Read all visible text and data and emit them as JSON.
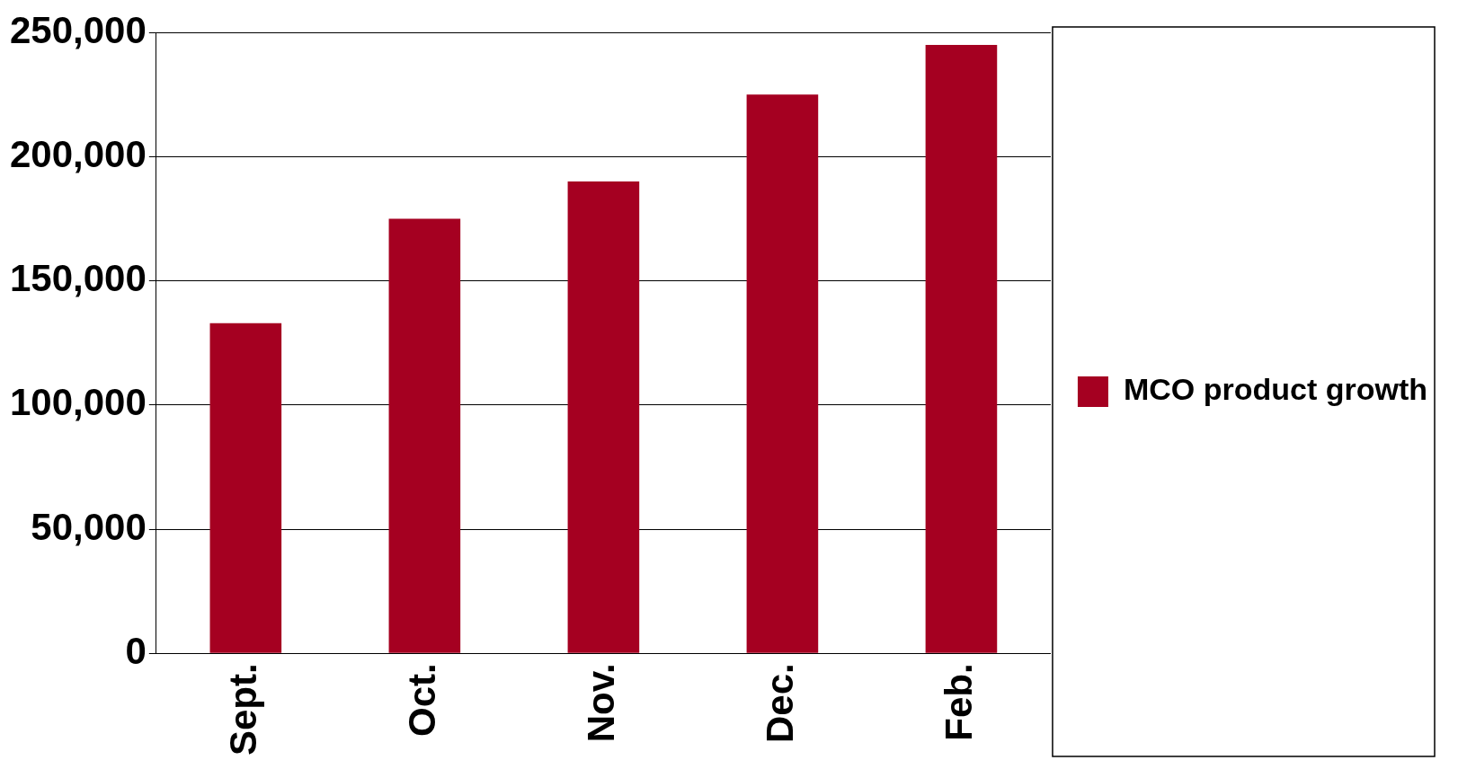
{
  "chart_data": {
    "type": "bar",
    "categories": [
      "Sept.",
      "Oct.",
      "Nov.",
      "Dec.",
      "Feb."
    ],
    "series": [
      {
        "name": "MCO product growth",
        "color": "#a50021",
        "values": [
          133000,
          175000,
          190000,
          225000,
          245000
        ]
      }
    ],
    "ylim": [
      0,
      250000
    ],
    "yticks": [
      {
        "value": 0,
        "label": "0"
      },
      {
        "value": 50000,
        "label": "50,000"
      },
      {
        "value": 100000,
        "label": "100,000"
      },
      {
        "value": 150000,
        "label": "150,000"
      },
      {
        "value": 200000,
        "label": "200,000"
      },
      {
        "value": 250000,
        "label": "250,000"
      }
    ],
    "grid": "y",
    "legend": "right"
  }
}
